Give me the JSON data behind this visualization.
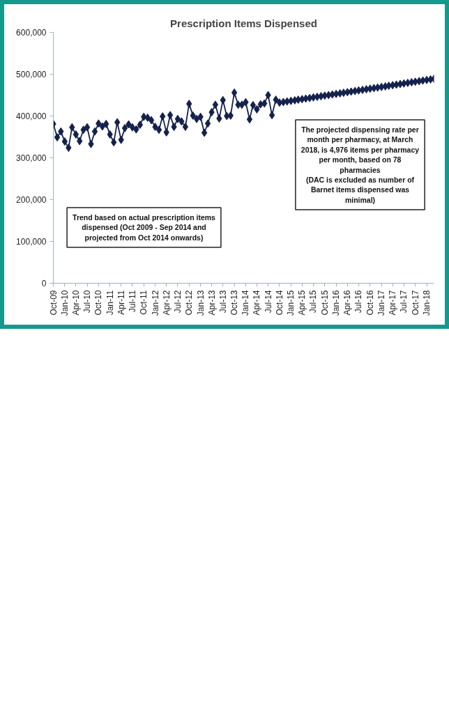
{
  "chart_data": {
    "type": "line",
    "title": "Prescription Items Dispensed",
    "annotations": [
      "Trend based on actual prescription items\ndispensed (Oct 2009 - Sep 2014 and\nprojected from Oct 2014 onwards)",
      "The projected dispensing rate per\nmonth per pharmacy, at March\n2018, is 4,976 items per pharmacy\nper month, based on 78\npharmacies\n(DAC is excluded as number of\nBarnet items dispensed was\nminimal)"
    ],
    "x": [
      "2009-10",
      "2009-11",
      "2009-12",
      "2010-01",
      "2010-02",
      "2010-03",
      "2010-04",
      "2010-05",
      "2010-06",
      "2010-07",
      "2010-08",
      "2010-09",
      "2010-10",
      "2010-11",
      "2010-12",
      "2011-01",
      "2011-02",
      "2011-03",
      "2011-04",
      "2011-05",
      "2011-06",
      "2011-07",
      "2011-08",
      "2011-09",
      "2011-10",
      "2011-11",
      "2011-12",
      "2012-01",
      "2012-02",
      "2012-03",
      "2012-04",
      "2012-05",
      "2012-06",
      "2012-07",
      "2012-08",
      "2012-09",
      "2012-10",
      "2012-11",
      "2012-12",
      "2013-01",
      "2013-02",
      "2013-03",
      "2013-04",
      "2013-05",
      "2013-06",
      "2013-07",
      "2013-08",
      "2013-09",
      "2013-10",
      "2013-11",
      "2013-12",
      "2014-01",
      "2014-02",
      "2014-03",
      "2014-04",
      "2014-05",
      "2014-06",
      "2014-07",
      "2014-08",
      "2014-09",
      "2014-10",
      "2014-11",
      "2014-12",
      "2015-01",
      "2015-02",
      "2015-03",
      "2015-04",
      "2015-05",
      "2015-06",
      "2015-07",
      "2015-08",
      "2015-09",
      "2015-10",
      "2015-11",
      "2015-12",
      "2016-01",
      "2016-02",
      "2016-03",
      "2016-04",
      "2016-05",
      "2016-06",
      "2016-07",
      "2016-08",
      "2016-09",
      "2016-10",
      "2016-11",
      "2016-12",
      "2017-01",
      "2017-02",
      "2017-03",
      "2017-04",
      "2017-05",
      "2017-06",
      "2017-07",
      "2017-08",
      "2017-09",
      "2017-10",
      "2017-11",
      "2017-12",
      "2018-01",
      "2018-02",
      "2018-03"
    ],
    "series": [
      {
        "color": "#14214d",
        "values": [
          381000,
          349000,
          363000,
          339000,
          324000,
          373000,
          356000,
          340000,
          367000,
          373000,
          333000,
          363000,
          382000,
          375000,
          381000,
          356000,
          337000,
          385000,
          343000,
          371000,
          380000,
          373000,
          368000,
          379000,
          398000,
          396000,
          390000,
          374000,
          367000,
          399000,
          361000,
          402000,
          374000,
          393000,
          387000,
          374000,
          429000,
          401000,
          393000,
          398000,
          360000,
          382000,
          409000,
          427000,
          394000,
          438000,
          400000,
          401000,
          456000,
          427000,
          427000,
          433000,
          392000,
          426000,
          416000,
          428000,
          430000,
          450000,
          402000,
          439000,
          432000,
          433400,
          434800,
          436200,
          437600,
          439000,
          440300,
          441700,
          443100,
          444500,
          445900,
          447300,
          448700,
          450100,
          451500,
          452900,
          454200,
          455600,
          457000,
          458400,
          459800,
          461200,
          462600,
          464000,
          465400,
          466800,
          468100,
          469500,
          470900,
          472300,
          473700,
          475100,
          476500,
          477900,
          479300,
          480700,
          482000,
          483400,
          484800,
          486200,
          487600,
          489000
        ]
      }
    ],
    "xlim": [
      "2009-10",
      "2018-03"
    ],
    "xticks": [
      {
        "value": "2009-10",
        "label": "Oct-09"
      },
      {
        "value": "2010-01",
        "label": "Jan-10"
      },
      {
        "value": "2010-04",
        "label": "Apr-10"
      },
      {
        "value": "2010-07",
        "label": "Jul-10"
      },
      {
        "value": "2010-10",
        "label": "Oct-10"
      },
      {
        "value": "2011-01",
        "label": "Jan-11"
      },
      {
        "value": "2011-04",
        "label": "Apr-11"
      },
      {
        "value": "2011-07",
        "label": "Jul-11"
      },
      {
        "value": "2011-10",
        "label": "Oct-11"
      },
      {
        "value": "2012-01",
        "label": "Jan-12"
      },
      {
        "value": "2012-04",
        "label": "Apr-12"
      },
      {
        "value": "2012-07",
        "label": "Jul-12"
      },
      {
        "value": "2012-10",
        "label": "Oct-12"
      },
      {
        "value": "2013-01",
        "label": "Jan-13"
      },
      {
        "value": "2013-04",
        "label": "Apr-13"
      },
      {
        "value": "2013-07",
        "label": "Jul-13"
      },
      {
        "value": "2013-10",
        "label": "Oct-13"
      },
      {
        "value": "2014-01",
        "label": "Jan-14"
      },
      {
        "value": "2014-04",
        "label": "Apr-14"
      },
      {
        "value": "2014-07",
        "label": "Jul-14"
      },
      {
        "value": "2014-10",
        "label": "Oct-14"
      },
      {
        "value": "2015-01",
        "label": "Jan-15"
      },
      {
        "value": "2015-04",
        "label": "Apr-15"
      },
      {
        "value": "2015-07",
        "label": "Jul-15"
      },
      {
        "value": "2015-10",
        "label": "Oct-15"
      },
      {
        "value": "2016-01",
        "label": "Jan-16"
      },
      {
        "value": "2016-04",
        "label": "Apr-16"
      },
      {
        "value": "2016-07",
        "label": "Jul-16"
      },
      {
        "value": "2016-10",
        "label": "Oct-16"
      },
      {
        "value": "2017-01",
        "label": "Jan-17"
      },
      {
        "value": "2017-04",
        "label": "Apr-17"
      },
      {
        "value": "2017-07",
        "label": "Jul-17"
      },
      {
        "value": "2017-10",
        "label": "Oct-17"
      },
      {
        "value": "2018-01",
        "label": "Jan-18"
      }
    ],
    "ylim": [
      0,
      600000
    ],
    "yticks": [
      {
        "value": 0,
        "label": "0"
      },
      {
        "value": 100000,
        "label": "100,000"
      },
      {
        "value": 200000,
        "label": "200,000"
      },
      {
        "value": 300000,
        "label": "300,000"
      },
      {
        "value": 400000,
        "label": "400,000"
      },
      {
        "value": 500000,
        "label": "500,000"
      },
      {
        "value": 600000,
        "label": "600,000"
      }
    ],
    "grid": false,
    "marker": "diamond",
    "line_style": "solid"
  }
}
